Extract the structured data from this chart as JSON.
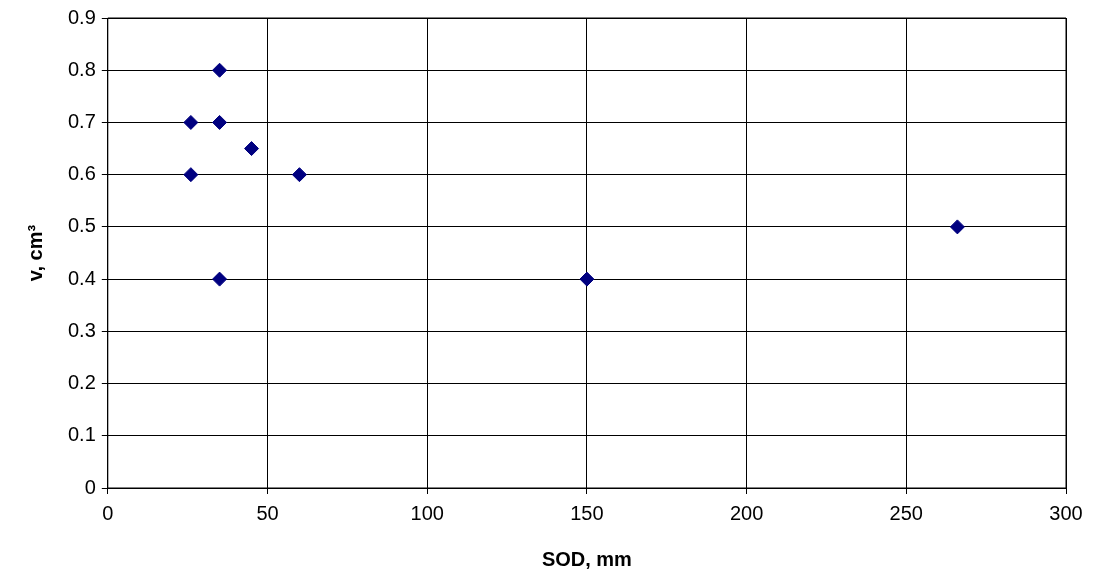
{
  "chart_data": {
    "type": "scatter",
    "xlabel": "SOD, mm",
    "ylabel": "v, cm³",
    "series": [
      {
        "color": "#000080",
        "x": [
          26,
          26,
          35,
          35,
          35,
          45,
          60,
          150,
          266
        ],
        "values": [
          0.7,
          0.6,
          0.8,
          0.7,
          0.4,
          0.65,
          0.6,
          0.4,
          0.5
        ]
      }
    ],
    "xlim": [
      0,
      300
    ],
    "xticks": [
      0,
      50,
      100,
      150,
      200,
      250,
      300
    ],
    "ylim": [
      0,
      0.9
    ],
    "yticks": [
      0,
      0.1,
      0.2,
      0.3,
      0.4,
      0.5,
      0.6,
      0.7,
      0.8,
      0.9
    ],
    "grid": true,
    "legend": false,
    "marker": "diamond"
  }
}
